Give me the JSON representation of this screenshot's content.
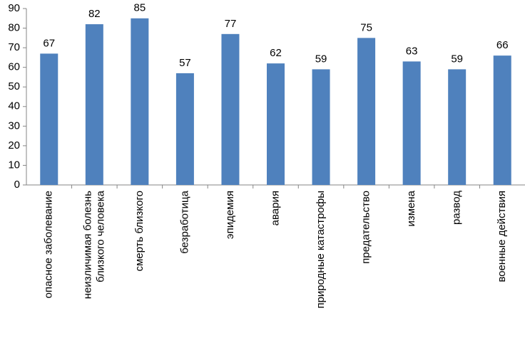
{
  "chart_data": {
    "type": "bar",
    "categories": [
      "опасное заболевание",
      "неизличимая болезнь\nблизкого человека",
      "смерть близкого",
      "безработица",
      "эпидемия",
      "авария",
      "природные катастрофы",
      "предательство",
      "измена",
      "развод",
      "военные действия"
    ],
    "values": [
      67,
      82,
      85,
      57,
      77,
      62,
      59,
      75,
      63,
      59,
      66
    ],
    "color": "#4f81bd",
    "ylim": [
      0,
      90
    ],
    "yticks": [
      0,
      10,
      20,
      30,
      40,
      50,
      60,
      70,
      80,
      90
    ],
    "grid": false
  }
}
